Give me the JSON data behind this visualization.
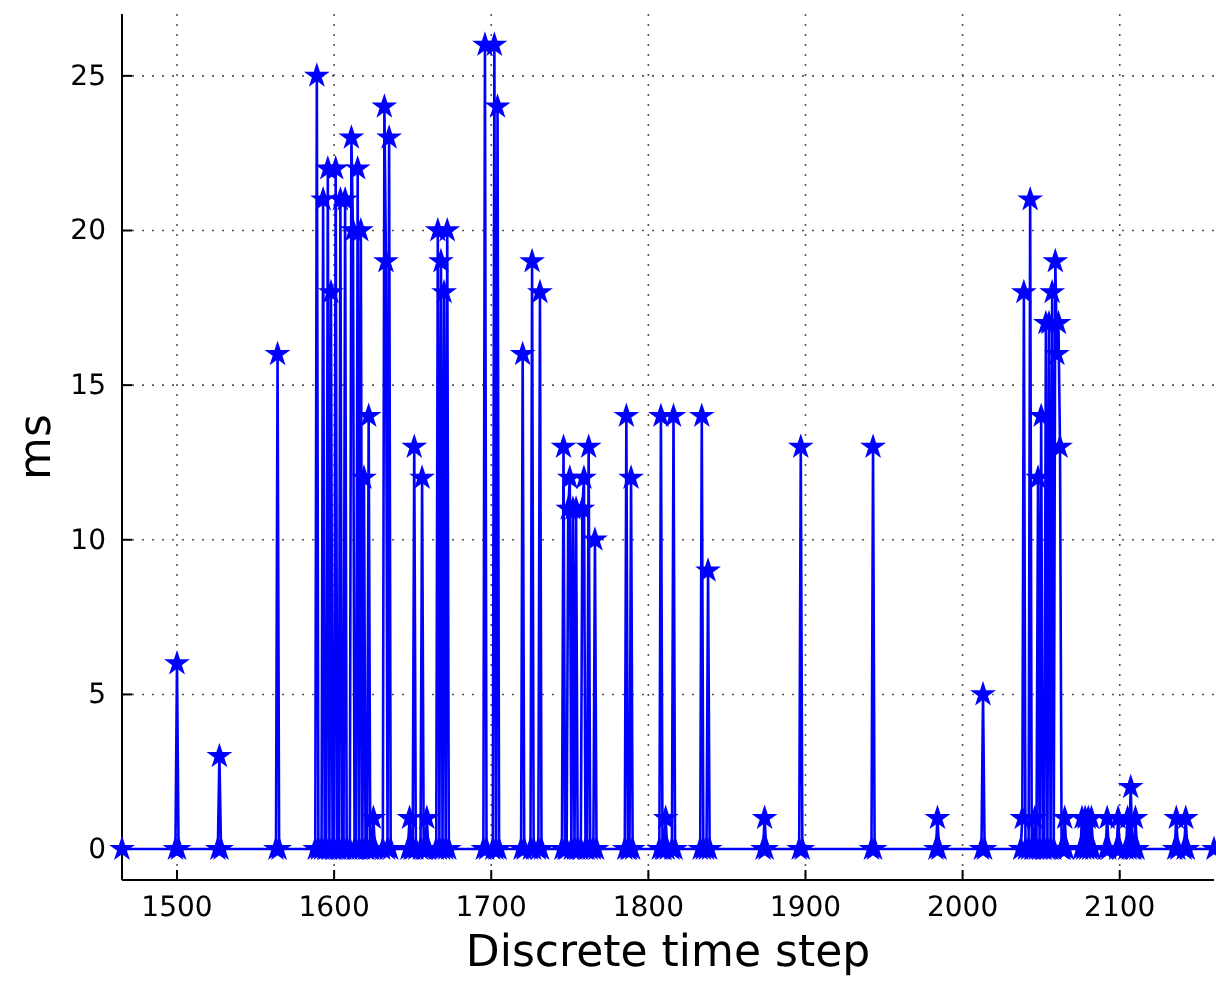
{
  "chart_data": {
    "type": "line",
    "xlabel": "Discrete time step",
    "ylabel": "ms",
    "xlim": [
      1465,
      2160
    ],
    "ylim": [
      -1,
      27
    ],
    "xticks": [
      1500,
      1600,
      1700,
      1800,
      1900,
      2000,
      2100
    ],
    "yticks": [
      0,
      5,
      10,
      15,
      20,
      25
    ],
    "grid": true,
    "marker": "star",
    "line_style": "solid",
    "series": [
      {
        "color": "#0000ff",
        "x": [
          1465,
          1499,
          1500,
          1501,
          1526,
          1527,
          1528,
          1563,
          1564,
          1565,
          1588,
          1589,
          1590,
          1592,
          1593,
          1594,
          1595,
          1596,
          1597,
          1598,
          1599,
          1600,
          1601,
          1602,
          1603,
          1604,
          1605,
          1606,
          1607,
          1608,
          1610,
          1611,
          1612,
          1613,
          1614,
          1615,
          1616,
          1617,
          1618,
          1619,
          1620,
          1621,
          1622,
          1623,
          1624,
          1625,
          1626,
          1631,
          1632,
          1633,
          1634,
          1635,
          1636,
          1647,
          1648,
          1649,
          1650,
          1651,
          1652,
          1655,
          1656,
          1657,
          1658,
          1659,
          1660,
          1665,
          1666,
          1667,
          1668,
          1669,
          1670,
          1671,
          1672,
          1673,
          1695,
          1696,
          1697,
          1701,
          1702,
          1703,
          1704,
          1705,
          1719,
          1720,
          1721,
          1725,
          1726,
          1727,
          1730,
          1731,
          1732,
          1745,
          1746,
          1747,
          1748,
          1749,
          1750,
          1751,
          1752,
          1753,
          1754,
          1755,
          1757,
          1758,
          1759,
          1760,
          1761,
          1762,
          1763,
          1765,
          1766,
          1767,
          1785,
          1786,
          1787,
          1788,
          1789,
          1790,
          1807,
          1808,
          1809,
          1810,
          1811,
          1812,
          1815,
          1816,
          1817,
          1833,
          1834,
          1835,
          1837,
          1838,
          1839,
          1873,
          1874,
          1875,
          1896,
          1897,
          1898,
          1942,
          1943,
          1944,
          1983,
          1984,
          1985,
          2012,
          2013,
          2014,
          2037,
          2038,
          2039,
          2040,
          2042,
          2043,
          2044,
          2045,
          2046,
          2047,
          2048,
          2049,
          2050,
          2051,
          2052,
          2053,
          2054,
          2055,
          2056,
          2057,
          2058,
          2059,
          2060,
          2061,
          2062,
          2063,
          2064,
          2065,
          2066,
          2075,
          2076,
          2077,
          2078,
          2079,
          2080,
          2081,
          2082,
          2083,
          2091,
          2092,
          2093,
          2098,
          2099,
          2100,
          2104,
          2105,
          2106,
          2107,
          2108,
          2109,
          2110,
          2111,
          2135,
          2136,
          2137,
          2141,
          2142,
          2143,
          2160
        ],
        "values": [
          0,
          0,
          6,
          0,
          0,
          3,
          0,
          0,
          16,
          0,
          0,
          25,
          0,
          0,
          21,
          0,
          0,
          22,
          0,
          18,
          0,
          0,
          22,
          0,
          0,
          21,
          0,
          0,
          21,
          0,
          0,
          23,
          20,
          0,
          0,
          22,
          0,
          20,
          0,
          12,
          0,
          0,
          14,
          0,
          0,
          1,
          0,
          0,
          24,
          19,
          0,
          23,
          0,
          0,
          1,
          0,
          0,
          13,
          0,
          0,
          12,
          0,
          0,
          1,
          0,
          0,
          20,
          0,
          19,
          0,
          18,
          0,
          20,
          0,
          0,
          26,
          0,
          0,
          26,
          0,
          24,
          0,
          0,
          16,
          0,
          0,
          19,
          0,
          0,
          18,
          0,
          0,
          13,
          0,
          0,
          11,
          12,
          0,
          11,
          0,
          11,
          0,
          0,
          11,
          12,
          0,
          0,
          13,
          0,
          0,
          10,
          0,
          0,
          14,
          0,
          0,
          12,
          0,
          0,
          14,
          0,
          0,
          1,
          0,
          0,
          14,
          0,
          0,
          14,
          0,
          0,
          9,
          0,
          0,
          1,
          0,
          0,
          13,
          0,
          0,
          13,
          0,
          0,
          1,
          0,
          0,
          5,
          0,
          0,
          1,
          18,
          0,
          0,
          21,
          0,
          0,
          1,
          0,
          12,
          0,
          14,
          0,
          0,
          17,
          0,
          17,
          0,
          18,
          0,
          19,
          16,
          17,
          13,
          0,
          0,
          1,
          0,
          0,
          1,
          0,
          1,
          0,
          1,
          0,
          1,
          0,
          0,
          1,
          0,
          0,
          1,
          0,
          0,
          1,
          0,
          2,
          0,
          0,
          1,
          0,
          0,
          1,
          0,
          0,
          1,
          0,
          0
        ]
      }
    ]
  }
}
